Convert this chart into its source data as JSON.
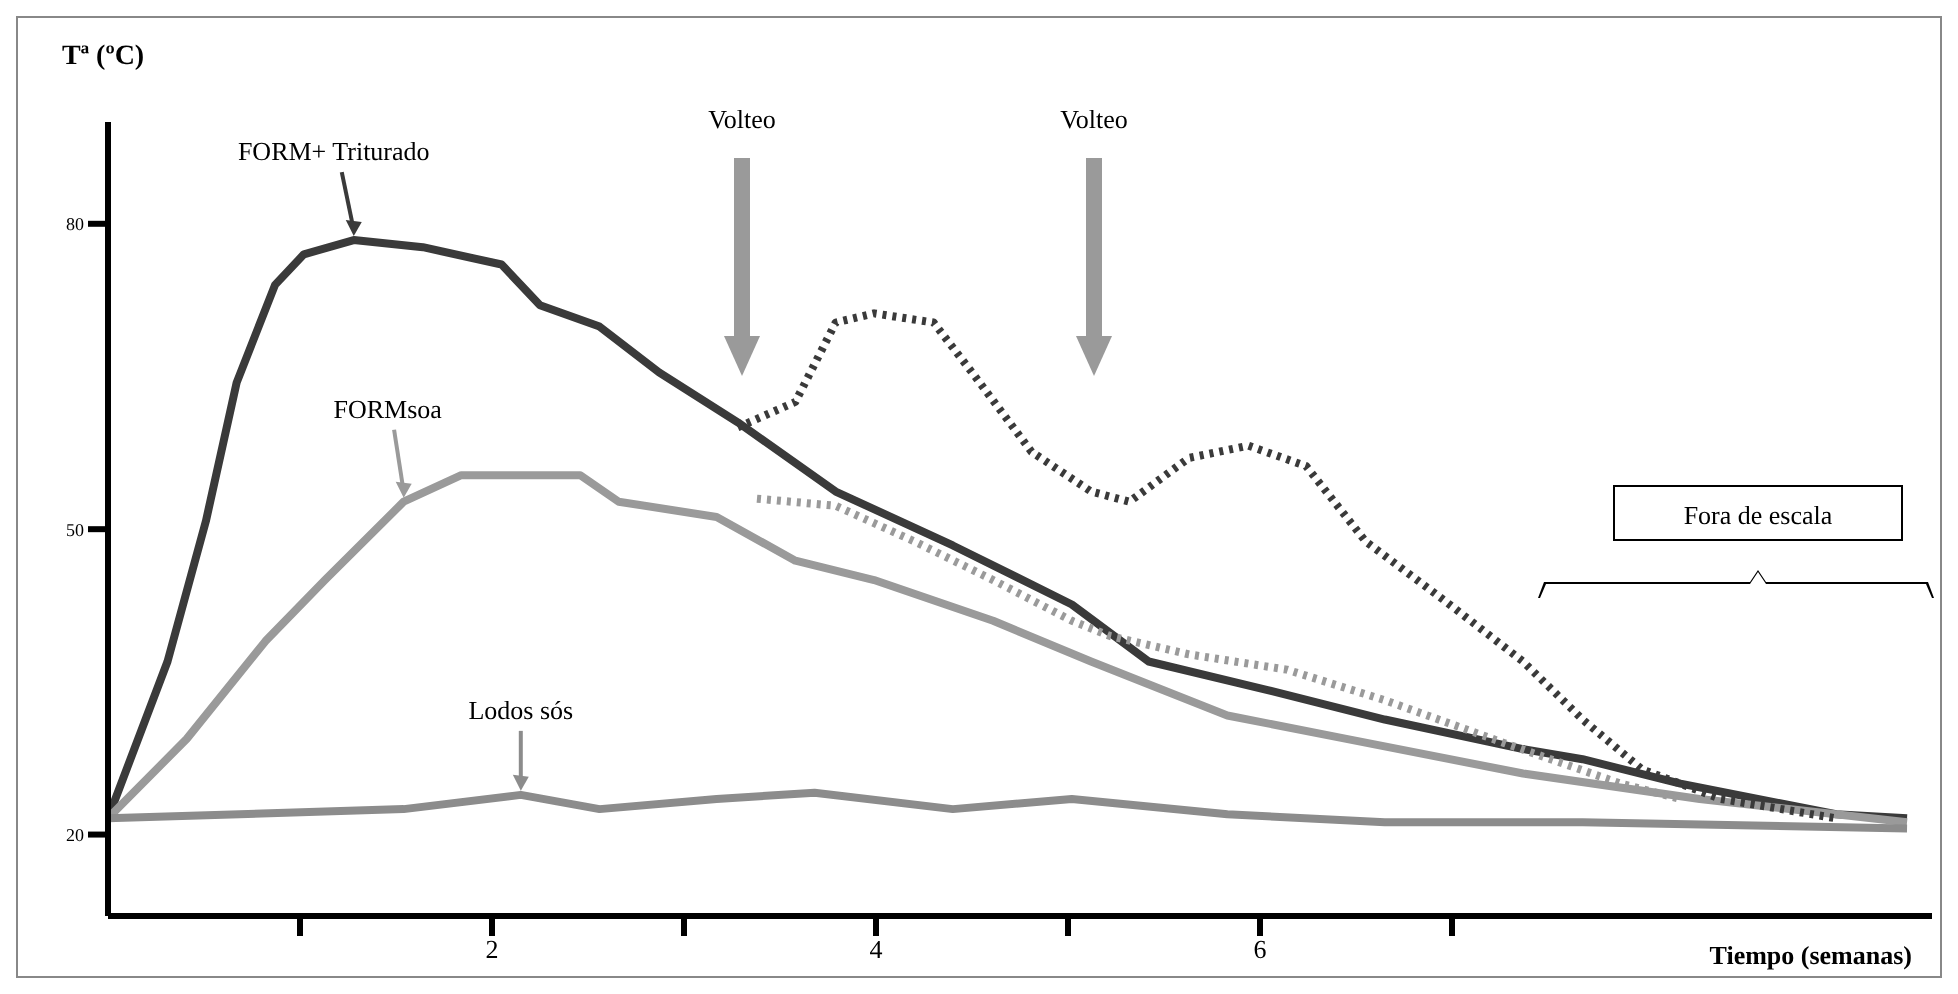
{
  "chart_data": {
    "type": "line",
    "xlabel": "Tiempo (semanas)",
    "ylabel": "Tª (ºC)",
    "xlim": [
      0,
      9.5
    ],
    "ylim": [
      12,
      90
    ],
    "xticks": [
      {
        "value": 1,
        "label": null
      },
      2,
      {
        "value": 3,
        "label": null
      },
      4,
      {
        "value": 5,
        "label": null
      },
      6,
      {
        "value": 7,
        "label": null
      }
    ],
    "yticks": [
      20,
      50,
      80
    ],
    "marker": "none",
    "series": [
      {
        "name": "FORM+ Triturado",
        "color": "#3a3a3a",
        "line_style": "solid",
        "x": [
          0,
          0.31,
          0.51,
          0.67,
          0.87,
          1.02,
          1.28,
          1.64,
          2.05,
          2.25,
          2.56,
          2.87,
          3.28,
          3.79,
          4.4,
          5.02,
          5.42,
          6.04,
          6.65,
          7.37,
          7.68,
          8.19,
          9.0,
          9.37
        ],
        "values": [
          21.6,
          37,
          50.8,
          64.4,
          74,
          77,
          78.4,
          77.7,
          76,
          72,
          69.9,
          65.4,
          60.5,
          53.7,
          48.4,
          42.6,
          37,
          34.2,
          31.3,
          28.4,
          27.4,
          25,
          22,
          21.6
        ]
      },
      {
        "name": "FORMsoa",
        "color": "#9a9a9a",
        "line_style": "solid",
        "x": [
          0,
          0.41,
          0.82,
          1.13,
          1.54,
          1.84,
          2.46,
          2.66,
          3.17,
          3.58,
          3.99,
          4.61,
          5.12,
          5.83,
          6.45,
          7.37,
          8.29,
          9.37
        ],
        "values": [
          21.6,
          29.4,
          39,
          45,
          52.7,
          55.3,
          55.3,
          52.7,
          51.2,
          46.9,
          45,
          41,
          37,
          31.7,
          29.4,
          26,
          23.5,
          21.2
        ]
      },
      {
        "name": "Lodos sós",
        "color": "#8c8c8c",
        "line_style": "solid",
        "x": [
          0,
          1.54,
          2.15,
          2.56,
          3.17,
          3.68,
          4.4,
          5.02,
          5.83,
          6.65,
          7.68,
          9.37
        ],
        "values": [
          21.6,
          22.5,
          23.9,
          22.5,
          23.5,
          24.1,
          22.5,
          23.5,
          22,
          21.2,
          21.2,
          20.6
        ]
      },
      {
        "color": "#3a3a3a",
        "line_style": "dotted",
        "x": [
          3.28,
          3.58,
          3.79,
          3.99,
          4.3,
          4.5,
          4.81,
          5.12,
          5.32,
          5.63,
          5.94,
          6.24,
          6.55,
          6.96,
          7.37,
          7.68,
          7.99,
          8.4,
          9.0
        ],
        "values": [
          60,
          62.5,
          70.3,
          71.2,
          70.3,
          65.4,
          57.6,
          53.7,
          52.7,
          57,
          58.2,
          56.2,
          48.8,
          43,
          37,
          31.3,
          26.4,
          23.5,
          21.6
        ]
      },
      {
        "color": "#9a9a9a",
        "line_style": "dotted",
        "x": [
          3.38,
          3.79,
          4.2,
          4.61,
          5.02,
          5.22,
          5.63,
          6.14,
          6.65,
          7.27,
          7.88,
          8.19
        ],
        "values": [
          53,
          52.3,
          48.8,
          45,
          41,
          39.5,
          37.7,
          36.2,
          33.2,
          29,
          25,
          23.5
        ]
      }
    ],
    "annotations": [
      "Volteo",
      "Volteo",
      "Fora de escala"
    ]
  }
}
